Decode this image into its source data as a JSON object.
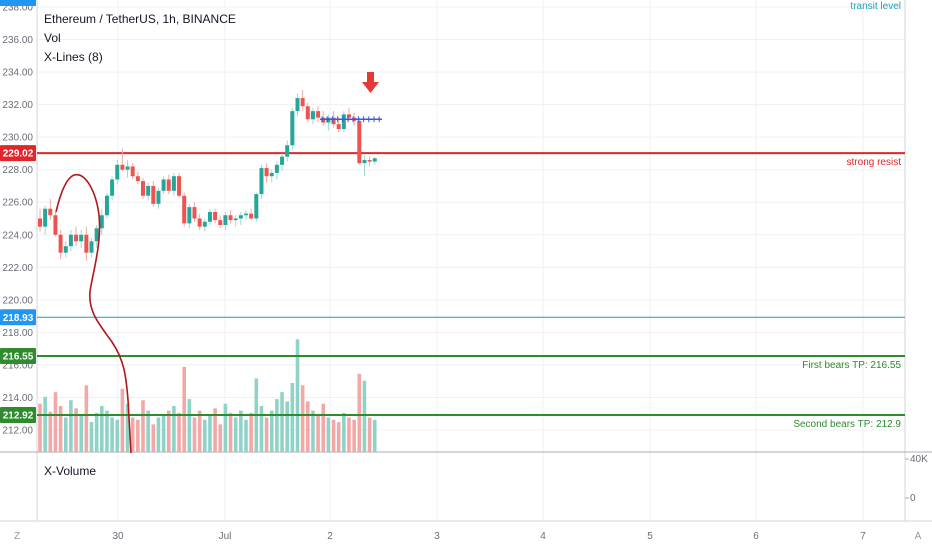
{
  "chart_data": {
    "type": "candlestick",
    "title": "Ethereum / TetherUS, 1h, BINANCE",
    "studies": [
      "Vol",
      "X-Lines (8)"
    ],
    "volume_pane_label": "X-Volume",
    "price_axis": {
      "ylim": [
        210.4,
        238.6
      ],
      "ticks": [
        "212.00",
        "214.00",
        "216.00",
        "218.00",
        "220.00",
        "222.00",
        "224.00",
        "226.00",
        "228.00",
        "230.00",
        "232.00",
        "234.00",
        "236.00",
        "238.00"
      ]
    },
    "volume_axis": {
      "ticks": [
        "40K",
        "0"
      ]
    },
    "time_axis": {
      "ticks": [
        "30",
        "Jul",
        "2",
        "3",
        "4",
        "5",
        "6",
        "7"
      ]
    },
    "price_labels": [
      {
        "value": "229.02",
        "color": "#e0262a"
      },
      {
        "value": "218.93",
        "color": "#2196f3"
      },
      {
        "value": "216.55",
        "color": "#2e8b2e"
      },
      {
        "value": "212.92",
        "color": "#2e8b2e"
      }
    ],
    "horizontal_lines": [
      {
        "price": 229.02,
        "label": "strong resist",
        "color": "#e0262a"
      },
      {
        "price": 218.93,
        "label": "",
        "color": "#17a2b8"
      },
      {
        "price": 216.55,
        "label": "First bears TP: 216.55",
        "color": "#2e8b2e"
      },
      {
        "price": 212.92,
        "label": "Second bears TP: 212.9",
        "color": "#2e8b2e"
      },
      {
        "price": 238.6,
        "label": "transit level",
        "color": "#17a2b8"
      }
    ],
    "candles": [
      [
        225.0,
        225.6,
        224.2,
        224.5
      ],
      [
        224.5,
        225.8,
        224.0,
        225.6
      ],
      [
        225.6,
        226.2,
        224.9,
        225.2
      ],
      [
        225.2,
        225.4,
        223.9,
        224.0
      ],
      [
        224.0,
        224.3,
        222.5,
        222.9
      ],
      [
        222.9,
        223.6,
        222.6,
        223.3
      ],
      [
        223.3,
        224.3,
        223.0,
        224.0
      ],
      [
        224.0,
        224.5,
        223.3,
        223.6
      ],
      [
        223.6,
        224.3,
        223.2,
        224.0
      ],
      [
        224.0,
        224.5,
        222.4,
        222.9
      ],
      [
        222.9,
        223.8,
        222.6,
        223.6
      ],
      [
        223.6,
        224.6,
        223.2,
        224.4
      ],
      [
        224.4,
        225.6,
        224.0,
        225.2
      ],
      [
        225.2,
        226.6,
        225.0,
        226.4
      ],
      [
        226.4,
        227.6,
        226.1,
        227.4
      ],
      [
        227.4,
        228.6,
        227.1,
        228.3
      ],
      [
        228.3,
        229.3,
        227.9,
        228.0
      ],
      [
        228.0,
        228.6,
        227.5,
        228.2
      ],
      [
        228.2,
        228.4,
        227.4,
        227.6
      ],
      [
        227.6,
        227.9,
        227.1,
        227.3
      ],
      [
        227.3,
        227.5,
        226.2,
        226.4
      ],
      [
        226.4,
        227.2,
        226.1,
        227.0
      ],
      [
        227.0,
        227.3,
        225.7,
        225.9
      ],
      [
        225.9,
        226.9,
        225.6,
        226.7
      ],
      [
        226.7,
        227.6,
        226.5,
        227.4
      ],
      [
        227.4,
        227.7,
        226.5,
        226.7
      ],
      [
        226.7,
        227.8,
        226.4,
        227.6
      ],
      [
        227.6,
        227.8,
        226.3,
        226.4
      ],
      [
        226.4,
        226.6,
        224.5,
        224.7
      ],
      [
        224.7,
        225.9,
        224.4,
        225.7
      ],
      [
        225.7,
        226.0,
        224.8,
        225.0
      ],
      [
        225.0,
        225.3,
        224.3,
        224.5
      ],
      [
        224.5,
        225.0,
        224.2,
        224.8
      ],
      [
        224.8,
        225.6,
        224.6,
        225.4
      ],
      [
        225.4,
        225.6,
        224.7,
        224.9
      ],
      [
        224.9,
        225.2,
        224.4,
        224.6
      ],
      [
        224.6,
        225.4,
        224.3,
        225.2
      ],
      [
        225.2,
        225.5,
        224.7,
        224.9
      ],
      [
        224.9,
        225.2,
        224.5,
        225.0
      ],
      [
        225.0,
        225.4,
        224.6,
        225.2
      ],
      [
        225.2,
        225.5,
        224.9,
        225.3
      ],
      [
        225.3,
        225.6,
        224.9,
        225.0
      ],
      [
        225.0,
        226.6,
        224.8,
        226.5
      ],
      [
        226.5,
        228.3,
        226.2,
        228.1
      ],
      [
        228.1,
        228.4,
        227.2,
        227.6
      ],
      [
        227.6,
        228.0,
        227.2,
        227.8
      ],
      [
        227.8,
        228.5,
        227.4,
        228.3
      ],
      [
        228.3,
        229.0,
        227.9,
        228.8
      ],
      [
        228.8,
        229.8,
        228.5,
        229.5
      ],
      [
        229.5,
        231.8,
        229.2,
        231.6
      ],
      [
        231.6,
        232.7,
        231.3,
        232.4
      ],
      [
        232.4,
        232.9,
        231.6,
        231.9
      ],
      [
        231.9,
        232.1,
        230.9,
        231.1
      ],
      [
        231.1,
        231.8,
        230.8,
        231.6
      ],
      [
        231.6,
        231.9,
        230.9,
        231.2
      ],
      [
        231.2,
        231.6,
        230.7,
        230.9
      ],
      [
        230.9,
        231.4,
        230.4,
        231.2
      ],
      [
        231.2,
        231.6,
        230.6,
        230.8
      ],
      [
        230.8,
        231.2,
        230.3,
        230.5
      ],
      [
        230.5,
        231.6,
        230.3,
        231.4
      ],
      [
        231.4,
        231.8,
        231.0,
        231.2
      ],
      [
        231.2,
        231.5,
        230.7,
        231.0
      ],
      [
        231.0,
        231.2,
        228.3,
        228.4
      ],
      [
        228.4,
        228.9,
        227.6,
        228.6
      ],
      [
        228.6,
        228.8,
        228.2,
        228.5
      ],
      [
        228.5,
        228.8,
        228.3,
        228.7
      ]
    ],
    "volume": [
      42,
      48,
      35,
      52,
      40,
      30,
      45,
      38,
      32,
      58,
      26,
      34,
      40,
      36,
      30,
      28,
      55,
      42,
      30,
      28,
      45,
      36,
      24,
      30,
      32,
      36,
      40,
      34,
      74,
      46,
      30,
      36,
      28,
      32,
      38,
      24,
      42,
      34,
      30,
      36,
      28,
      34,
      64,
      40,
      30,
      36,
      46,
      52,
      44,
      60,
      98,
      58,
      44,
      36,
      32,
      42,
      30,
      28,
      26,
      34,
      30,
      28,
      68,
      62,
      30,
      28
    ],
    "volume_max": 100,
    "drawings": [
      "red freehand curve",
      "down arrow marker",
      "blue X-Lines"
    ]
  }
}
